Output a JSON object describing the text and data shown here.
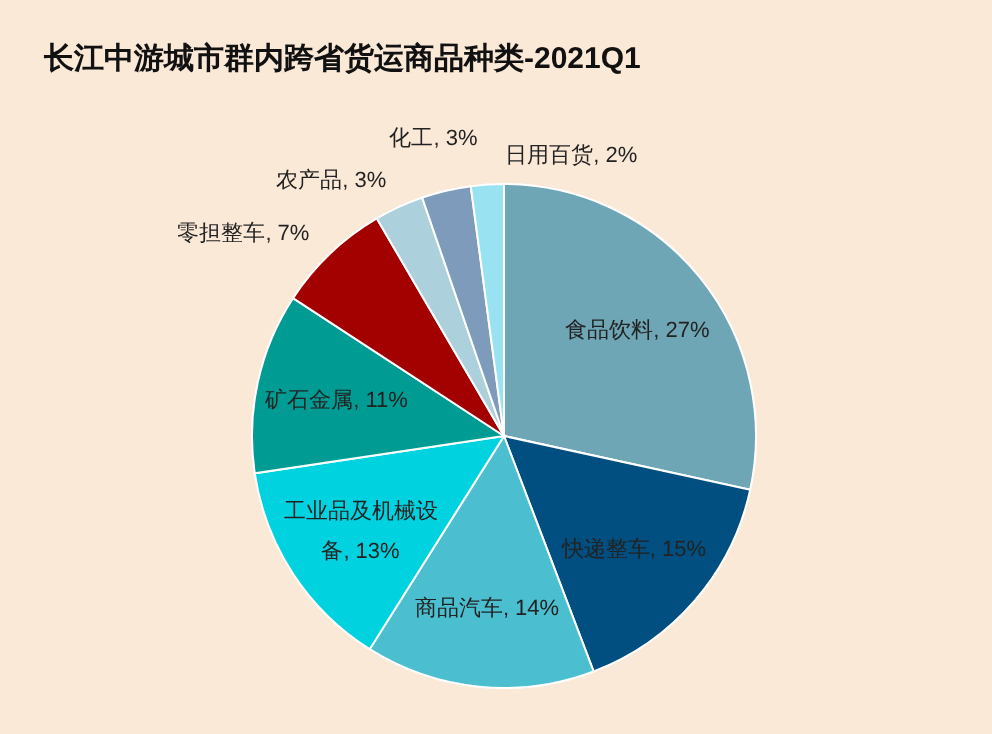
{
  "chart_data": {
    "type": "pie",
    "title": "长江中游城市群内跨省货运商品种类-2021Q1",
    "categories": [
      "食品饮料",
      "快递整车",
      "商品汽车",
      "工业品及机械设备",
      "矿石金属",
      "零担整车",
      "农产品",
      "化工",
      "日用百货"
    ],
    "values": [
      27,
      15,
      14,
      13,
      11,
      7,
      3,
      3,
      2
    ],
    "colors": [
      "#6fa6b5",
      "#004f80",
      "#4bbfd0",
      "#00d2e0",
      "#009b93",
      "#a30000",
      "#acd0dc",
      "#7f9bbb",
      "#98e2f2"
    ],
    "value_labels": [
      ", 27%",
      ", 15%",
      ", 14%",
      ", 13%",
      ", 11%",
      ", 7%",
      ", 3%",
      ", 3%",
      ", 2%"
    ]
  }
}
